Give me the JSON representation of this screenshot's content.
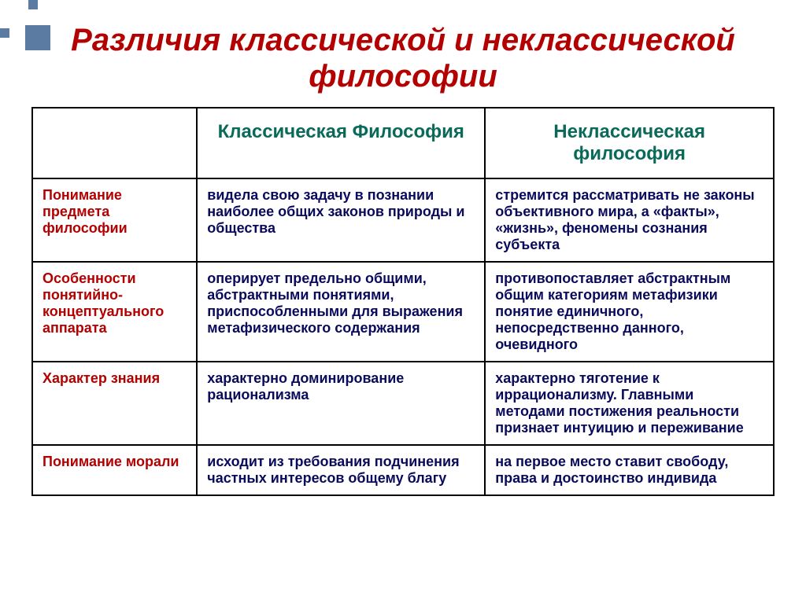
{
  "title": {
    "text": "Различия классической и неклассической философии",
    "color": "#b30000",
    "fontsize": 40
  },
  "table": {
    "header_color": "#0a6a5a",
    "header_fontsize": 24,
    "rowlabel_color": "#b30000",
    "rowlabel_fontsize": 18,
    "cell_color": "#0a0a5c",
    "cell_fontsize": 18,
    "columns": {
      "classical": "Классическая Философия",
      "nonclassical": "Неклассическая философия"
    },
    "rows": [
      {
        "label": "Понимание предмета философии",
        "classical": "видела свою задачу в познании наиболее общих законов природы и общества",
        "nonclassical": "стремится рассматривать не законы объективного мира, а «факты», «жизнь», феномены сознания субъекта"
      },
      {
        "label": "Особенности понятийно-концептуального аппарата",
        "classical": "оперирует предельно общими, абстрактными понятиями, приспособленными для выражения метафизического содержания",
        "nonclassical": "противопоставляет абстрактным общим категориям метафизики понятие единичного, непосредственно данного, очевидного"
      },
      {
        "label": "Характер знания",
        "classical": "характерно доминирование рационализма",
        "nonclassical": "характерно тяготение к иррационализму. Главными методами постижения реальности признает интуицию и переживание"
      },
      {
        "label": "Понимание морали",
        "classical": "исходит из требования подчинения частных интересов общему благу",
        "nonclassical": "на первое место ставит свободу, права и достоинство индивида"
      }
    ]
  },
  "decoration_color": "#5b7ba3"
}
